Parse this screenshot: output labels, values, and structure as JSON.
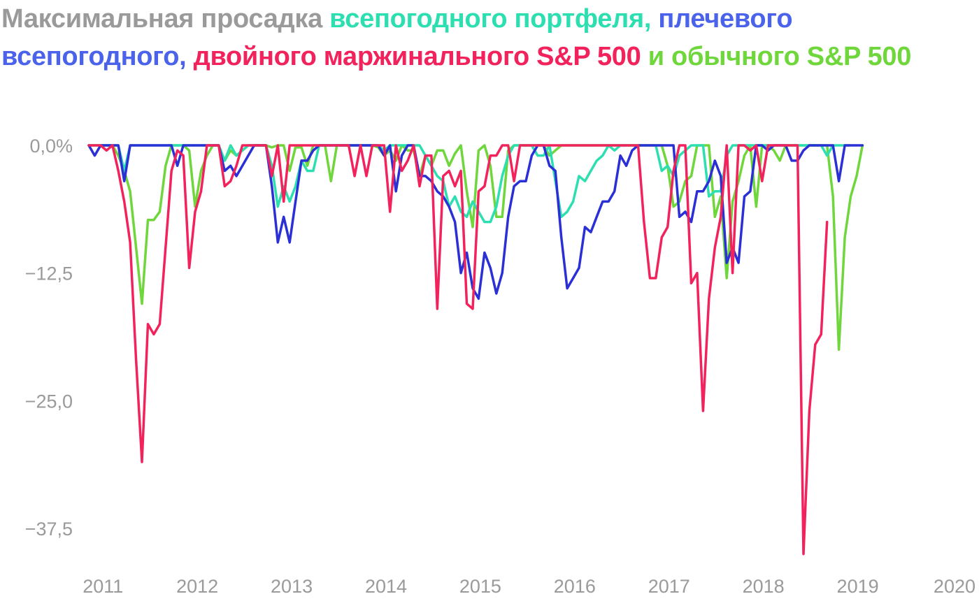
{
  "chart_data": {
    "type": "line",
    "title_parts": [
      {
        "text": "Максимальная просадка ",
        "color": "#9a9a9a"
      },
      {
        "text": "всепогодного портфеля, ",
        "color": "#2ddfb0"
      },
      {
        "text": "плечевого всепогодного, ",
        "color": "#4a63ea"
      },
      {
        "text": "двойного маржинального S&P 500",
        "color": "#f2235c"
      },
      {
        "text": " и обычного S&P 500",
        "color": "#6fd63c"
      }
    ],
    "y_ticks": [
      "0,0%",
      "−12,5",
      "−25,0",
      "−37,5"
    ],
    "y_tick_values": [
      0,
      -12.5,
      -25,
      -37.5
    ],
    "ylim": [
      -40.5,
      0
    ],
    "x_ticks": [
      "2011",
      "2012",
      "2013",
      "2014",
      "2015",
      "2016",
      "2017",
      "2018",
      "2019",
      "2020"
    ],
    "x_tick_values": [
      2011,
      2012,
      2013,
      2014,
      2015,
      2016,
      2017,
      2018,
      2019,
      2020
    ],
    "xlim": [
      2010.85,
      2020.1
    ],
    "x_start": 2010.85,
    "x_step": 0.0626,
    "grid": false,
    "series": [
      {
        "color": "#6fd63c",
        "values": [
          0,
          0,
          0,
          0,
          0,
          -1,
          -2.5,
          -4.5,
          -10,
          -15.5,
          -7.3,
          -7.3,
          -6.5,
          -2,
          0,
          0,
          0,
          -0.5,
          -6,
          -2.5,
          -1,
          0,
          0,
          -1.5,
          -0.5,
          -1,
          -0.5,
          0,
          0,
          0,
          0,
          -0.2,
          0,
          0,
          -2.5,
          -0.2,
          -0.2,
          -2,
          0,
          0,
          0,
          -3.5,
          0,
          0,
          0,
          0,
          0,
          0,
          0,
          -0.2,
          -1,
          -0.5,
          -1.5,
          0,
          -0.5,
          -0.5,
          -3,
          -1,
          -2,
          -0.5,
          -0.5,
          -2,
          -0.8,
          0,
          -4.5,
          -8,
          -0.5,
          0,
          -2,
          -7,
          -7,
          -0.5,
          0,
          0,
          0,
          0,
          0,
          0,
          -1,
          -0.5,
          0,
          0,
          0,
          0,
          0,
          0,
          0,
          0,
          0,
          0,
          0,
          0,
          0,
          0,
          0,
          0,
          0,
          0,
          -2,
          -6,
          -5.5,
          -3.5,
          -3,
          0,
          0,
          0,
          -7,
          -5,
          -13,
          -5.5,
          -3.5,
          -1,
          0,
          -6,
          0,
          0,
          -0.5,
          -1.5,
          0,
          0,
          0,
          0,
          0,
          0,
          0,
          0,
          -5,
          -20,
          -9,
          -5,
          -3,
          0
        ],
        "draw_order": 0
      },
      {
        "color": "#2ddfb0",
        "values": [
          0,
          0,
          0,
          0,
          0,
          0,
          -2.5,
          0,
          0,
          0,
          0,
          0,
          0,
          0,
          0,
          0,
          0,
          0,
          0,
          0,
          0,
          0,
          0,
          -1.5,
          0,
          -1,
          -0.5,
          0,
          0,
          0,
          0,
          -2,
          -6,
          -4,
          -5.5,
          -4,
          -1.5,
          -2.5,
          -2.5,
          0,
          0,
          0,
          0,
          0,
          0,
          0,
          0,
          0,
          0,
          0,
          -0.5,
          0,
          0,
          0,
          0,
          0,
          0,
          -1,
          -2,
          -3,
          -3.5,
          -6,
          -5,
          -6.5,
          -7,
          -5.5,
          -6.5,
          -7.5,
          -7.5,
          -6,
          -3,
          -1,
          0,
          0,
          0,
          0,
          -1,
          -1,
          0,
          -3.5,
          -7,
          -6.5,
          -5.5,
          -3,
          -3.5,
          -2.5,
          -1.5,
          -1,
          0,
          -0.5,
          0,
          0,
          0,
          0,
          0,
          0,
          0,
          -2.5,
          -2,
          -3,
          -1,
          -0.5,
          0,
          0,
          0,
          -5,
          -4.5,
          -4.5,
          -1,
          0,
          0,
          0,
          0,
          0,
          0,
          0,
          0,
          0,
          0,
          0,
          0,
          0,
          0,
          0,
          0,
          -1,
          0,
          0,
          0,
          0
        ],
        "draw_order": 1
      },
      {
        "color": "#2b2fd6",
        "values": [
          0,
          -1,
          0,
          0,
          0,
          0,
          -3.5,
          0,
          0,
          0,
          0,
          0,
          0,
          0,
          0,
          -2,
          0,
          0,
          0,
          0,
          0,
          0,
          0,
          -2.5,
          -2,
          -3,
          -2,
          -1,
          0,
          0,
          0,
          -4,
          -9.5,
          -7,
          -9.5,
          -5.5,
          -1.5,
          -1.5,
          -0.5,
          0,
          0,
          0,
          0,
          0,
          0,
          0,
          0,
          0,
          0,
          0,
          -1,
          0,
          -4.5,
          -1,
          0,
          0,
          -3,
          -3,
          -3.5,
          -4.5,
          -5,
          -6,
          -7.5,
          -12.5,
          -10.5,
          -14,
          -15,
          -10.5,
          -12,
          -14.5,
          -12.5,
          -7,
          -4,
          -3.5,
          -3.5,
          -1,
          0,
          0,
          -2,
          -2.5,
          -9,
          -14,
          -13,
          -12,
          -8,
          -8.5,
          -7,
          -5.5,
          -5.5,
          -4.5,
          -1,
          -2,
          -0.5,
          0,
          0,
          0,
          0,
          0,
          0,
          0,
          -7,
          -6.5,
          -7.5,
          -4.5,
          -4.5,
          -3.5,
          -1.5,
          -3,
          -11.5,
          -10,
          -11.5,
          -5,
          -4.5,
          0,
          0,
          -0.5,
          0,
          0,
          0,
          -1.5,
          -1.5,
          -0.5,
          0,
          0,
          0,
          0,
          0,
          -3.5,
          0,
          0,
          0,
          0
        ],
        "draw_order": 2
      },
      {
        "color": "#f2235c",
        "values": [
          0,
          0,
          0,
          -0.5,
          0,
          -2.5,
          -5.5,
          -9.5,
          -21,
          -31,
          -17.5,
          -18.5,
          -17.5,
          -10,
          -2.5,
          -0.5,
          -1,
          -12,
          -6.5,
          -4.5,
          0,
          0,
          0,
          -4,
          -3.5,
          -2,
          0,
          0,
          0,
          0,
          0,
          -3,
          0,
          -5.5,
          0,
          0,
          0,
          0,
          0,
          0,
          0,
          0,
          0,
          0,
          0,
          -3,
          0,
          -3,
          0,
          0,
          0,
          -6.5,
          0,
          -2.5,
          -1.5,
          0,
          -4,
          -1,
          -1,
          -16,
          -3,
          -2.5,
          -4,
          -2.5,
          -15.5,
          -16,
          -4.5,
          -4,
          -1,
          -1,
          0,
          0,
          -3.5,
          0,
          0,
          0,
          0,
          0,
          0,
          0,
          0,
          0,
          0,
          0,
          0,
          0,
          0,
          0,
          0,
          0,
          0,
          0,
          0,
          0,
          -7.5,
          -13,
          -13,
          -9,
          -8,
          -2.5,
          0,
          0,
          -13.5,
          -12.5,
          -26,
          -15,
          -10,
          -7,
          0,
          -12.5,
          0,
          0,
          -0.5,
          0,
          -3.5,
          0,
          0,
          0,
          0,
          0,
          0,
          -40,
          -26,
          -19.5,
          -18.5,
          -7.5
        ],
        "draw_order": 3
      }
    ]
  }
}
